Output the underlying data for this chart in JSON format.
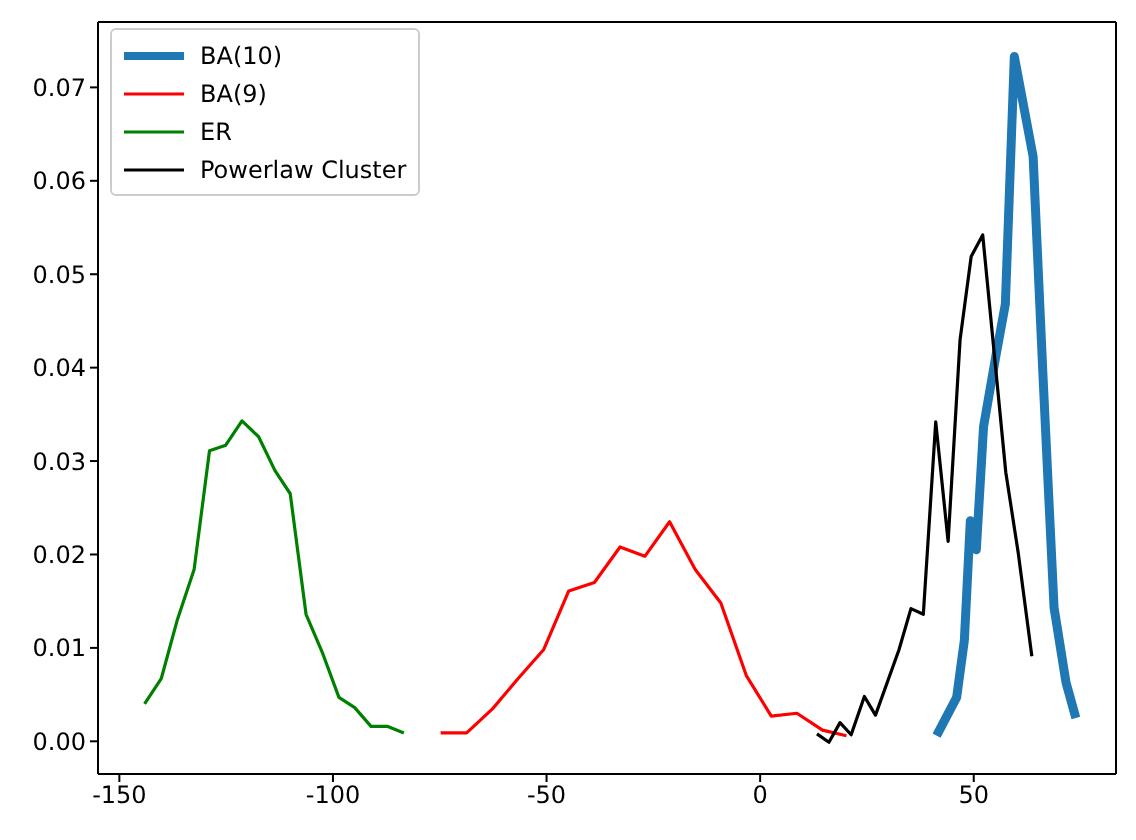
{
  "chart_data": {
    "type": "line",
    "xlim": [
      -155,
      83.3
    ],
    "ylim": [
      -0.0035,
      0.077
    ],
    "xticks": [
      -150,
      -100,
      -50,
      0,
      50
    ],
    "yticks": [
      {
        "value": 0,
        "label": "0.00"
      },
      {
        "value": 0.01,
        "label": "0.01"
      },
      {
        "value": 0.02,
        "label": "0.02"
      },
      {
        "value": 0.03,
        "label": "0.03"
      },
      {
        "value": 0.04,
        "label": "0.04"
      },
      {
        "value": 0.05,
        "label": "0.05"
      },
      {
        "value": 0.06,
        "label": "0.06"
      },
      {
        "value": 0.07,
        "label": "0.07"
      }
    ],
    "legend": "top left",
    "marker": "none",
    "line_style": "solid",
    "series": [
      {
        "name": "BA(10)",
        "color": "#1f77b4",
        "x": [
          41.3,
          46.0,
          47.8,
          49.2,
          50.6,
          52.3,
          55.2,
          57.4,
          59.5,
          63.9,
          66.2,
          68.8,
          71.6,
          73.9
        ],
        "values": [
          0.0006,
          0.0047,
          0.0108,
          0.0236,
          0.0205,
          0.0337,
          0.0413,
          0.0468,
          0.0733,
          0.0626,
          0.0392,
          0.0143,
          0.0063,
          0.0025
        ]
      },
      {
        "name": "BA(9)",
        "color": "#ff0000",
        "x": [
          -74.8,
          -68.7,
          -62.6,
          -56.7,
          -50.7,
          -44.8,
          -38.8,
          -32.8,
          -27.0,
          -21.2,
          -15.2,
          -9.2,
          -3.2,
          2.6,
          8.6,
          14.6,
          20.2
        ],
        "values": [
          0.0009,
          0.0009,
          0.0035,
          0.0067,
          0.0098,
          0.0161,
          0.017,
          0.0208,
          0.0198,
          0.0235,
          0.0184,
          0.0148,
          0.007,
          0.0027,
          0.003,
          0.0012,
          0.0006
        ]
      },
      {
        "name": "ER",
        "color": "#008000",
        "x": [
          -144.1,
          -140.2,
          -136.5,
          -132.5,
          -128.9,
          -125.1,
          -121.3,
          -117.4,
          -113.6,
          -110.0,
          -106.3,
          -102.4,
          -98.6,
          -94.9,
          -91.1,
          -87.3,
          -83.4
        ],
        "values": [
          0.004,
          0.0067,
          0.0129,
          0.0184,
          0.0311,
          0.0317,
          0.0343,
          0.0326,
          0.029,
          0.0265,
          0.0136,
          0.0094,
          0.0047,
          0.0036,
          0.0016,
          0.0016,
          0.0009
        ]
      },
      {
        "name": "Powerlaw Cluster",
        "color": "#000000",
        "x": [
          13.3,
          16.1,
          18.7,
          21.3,
          24.4,
          27.0,
          32.5,
          35.3,
          38.2,
          41.1,
          44.0,
          46.8,
          49.4,
          52.1,
          57.5,
          60.4,
          63.6
        ],
        "values": [
          0.0008,
          -0.0001,
          0.002,
          0.0007,
          0.0048,
          0.0028,
          0.0098,
          0.0142,
          0.0136,
          0.0342,
          0.0214,
          0.043,
          0.0519,
          0.0542,
          0.0288,
          0.0202,
          0.0091
        ]
      }
    ]
  }
}
